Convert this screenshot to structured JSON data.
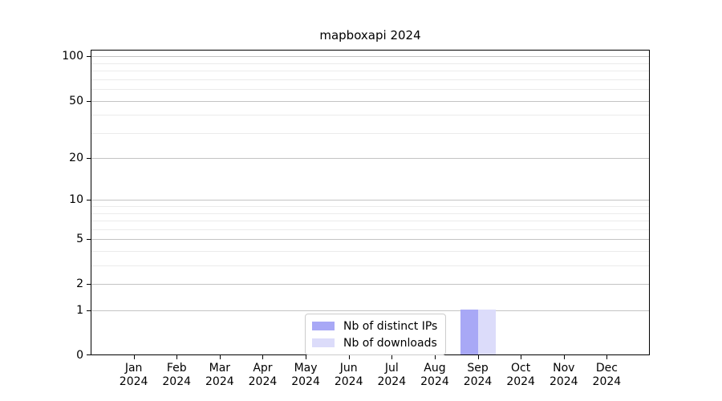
{
  "chart_data": {
    "type": "bar",
    "title": "mapboxapi 2024",
    "categories": [
      "Jan",
      "Feb",
      "Mar",
      "Apr",
      "May",
      "Jun",
      "Jul",
      "Aug",
      "Sep",
      "Oct",
      "Nov",
      "Dec"
    ],
    "year_label": "2024",
    "series": [
      {
        "name": "Nb of distinct IPs",
        "color": "#a8a8f6",
        "values": [
          0,
          0,
          0,
          0,
          0,
          0,
          0,
          0,
          1,
          0,
          0,
          0
        ]
      },
      {
        "name": "Nb of downloads",
        "color": "#dcdcfa",
        "values": [
          0,
          0,
          0,
          0,
          0,
          0,
          0,
          0,
          1,
          0,
          0,
          0
        ]
      }
    ],
    "y_axis": {
      "scale": "log1p",
      "ticks": [
        0,
        1,
        2,
        5,
        10,
        20,
        50,
        100
      ],
      "minor_gridlines": [
        3,
        4,
        6,
        7,
        8,
        9,
        30,
        40,
        60,
        70,
        80,
        90
      ],
      "max": 111
    },
    "x_axis": {
      "label_lines": 2
    },
    "legend": {
      "position": "lower center"
    },
    "grid": {
      "horizontal": true,
      "vertical": false
    },
    "colors": {
      "major_grid": "#c3c3c3",
      "minor_grid": "#ebebeb",
      "spine": "#000000",
      "text": "#000000"
    }
  }
}
